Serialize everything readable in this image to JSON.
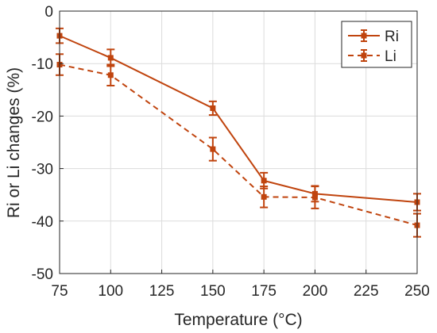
{
  "chart_data": {
    "type": "line",
    "xlabel": "Temperature (°C)",
    "ylabel": "Ri or Li changes (%)",
    "xlim": [
      75,
      250
    ],
    "ylim": [
      -50,
      0
    ],
    "xticks": [
      75,
      100,
      125,
      150,
      175,
      200,
      225,
      250
    ],
    "yticks": [
      0,
      -10,
      -20,
      -30,
      -40,
      -50
    ],
    "x_tick_labels": [
      "75",
      "100",
      "125",
      "150",
      "175",
      "200",
      "225",
      "250"
    ],
    "y_tick_labels": [
      "0",
      "-10",
      "-20",
      "-30",
      "-40",
      "-50"
    ],
    "grid": true,
    "legend_position": "top-right",
    "color": "#c0440e",
    "x": [
      75,
      100,
      150,
      175,
      200,
      250
    ],
    "series": [
      {
        "name": "Ri",
        "style": "solid",
        "values": [
          -4.7,
          -8.9,
          -18.5,
          -32.3,
          -34.8,
          -36.4
        ],
        "errors": [
          1.4,
          1.6,
          1.3,
          1.5,
          1.5,
          1.6
        ]
      },
      {
        "name": "Li",
        "style": "dashed",
        "values": [
          -10.2,
          -12.2,
          -26.3,
          -35.4,
          -35.5,
          -40.8
        ],
        "errors": [
          2.0,
          2.0,
          2.2,
          2.0,
          2.1,
          2.2
        ]
      }
    ]
  }
}
